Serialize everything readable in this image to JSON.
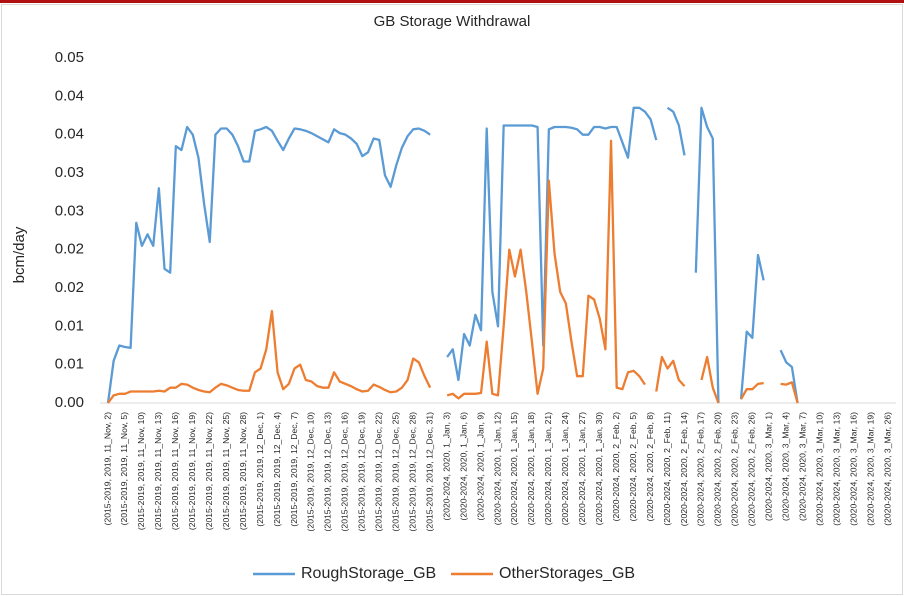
{
  "chart_data": {
    "type": "line",
    "title": "GB Storage Withdrawal",
    "ylabel": "bcm/day",
    "categories": [
      "(2015-2019, 2019, 11_Nov, 2)",
      null,
      null,
      "(2015-2019, 2019, 11_Nov, 5)",
      null,
      null,
      "(2015-2019, 2019, 11_Nov, 10)",
      null,
      null,
      "(2015-2019, 2019, 11_Nov, 13)",
      null,
      null,
      "(2015-2019, 2019, 11_Nov, 16)",
      null,
      null,
      "(2015-2019, 2019, 11_Nov, 19)",
      null,
      null,
      "(2015-2019, 2019, 11_Nov, 22)",
      null,
      null,
      "(2015-2019, 2019, 11_Nov, 25)",
      null,
      null,
      "(2015-2019, 2019, 11_Nov, 28)",
      null,
      null,
      "(2015-2019, 2019, 12_Dec, 1)",
      null,
      null,
      "(2015-2019, 2019, 12_Dec, 4)",
      null,
      null,
      "(2015-2019, 2019, 12_Dec, 7)",
      null,
      null,
      "(2015-2019, 2019, 12_Dec, 10)",
      null,
      null,
      "(2015-2019, 2019, 12_Dec, 13)",
      null,
      null,
      "(2015-2019, 2019, 12_Dec, 16)",
      null,
      null,
      "(2015-2019, 2019, 12_Dec, 19)",
      null,
      null,
      "(2015-2019, 2019, 12_Dec, 22)",
      null,
      null,
      "(2015-2019, 2019, 12_Dec, 25)",
      null,
      null,
      "(2015-2019, 2019, 12_Dec, 28)",
      null,
      null,
      "(2015-2019, 2019, 12_Dec, 31)",
      null,
      null,
      "(2020-2024, 2020, 1_Jan, 3)",
      null,
      null,
      "(2020-2024, 2020, 1_Jan, 6)",
      null,
      null,
      "(2020-2024, 2020, 1_Jan, 9)",
      null,
      null,
      "(2020-2024, 2020, 1_Jan, 12)",
      null,
      null,
      "(2020-2024, 2020, 1_Jan, 15)",
      null,
      null,
      "(2020-2024, 2020, 1_Jan, 18)",
      null,
      null,
      "(2020-2024, 2020, 1_Jan, 21)",
      null,
      null,
      "(2020-2024, 2020, 1_Jan, 24)",
      null,
      null,
      "(2020-2024, 2020, 1_Jan, 27)",
      null,
      null,
      "(2020-2024, 2020, 1_Jan, 30)",
      null,
      null,
      "(2020-2024, 2020, 2_Feb, 2)",
      null,
      null,
      "(2020-2024, 2020, 2_Feb, 5)",
      null,
      null,
      "(2020-2024, 2020, 2_Feb, 8)",
      null,
      null,
      "(2020-2024, 2020, 2_Feb, 11)",
      null,
      null,
      "(2020-2024, 2020, 2_Feb, 14)",
      null,
      null,
      "(2020-2024, 2020, 2_Feb, 17)",
      null,
      null,
      "(2020-2024, 2020, 2_Feb, 20)",
      null,
      null,
      "(2020-2024, 2020, 2_Feb, 23)",
      null,
      null,
      "(2020-2024, 2020, 2_Feb, 26)",
      null,
      null,
      "(2020-2024, 2020, 3_Mar, 1)",
      null,
      null,
      "(2020-2024, 2020, 3_Mar, 4)",
      null,
      null,
      "(2020-2024, 2020, 3_Mar, 7)",
      null,
      null,
      "(2020-2024, 2020, 3_Mar, 10)",
      null,
      null,
      "(2020-2024, 2020, 3_Mar, 13)",
      null,
      null,
      "(2020-2024, 2020, 3_Mar, 16)",
      null,
      null,
      "(2020-2024, 2020, 3_Mar, 19)",
      null,
      null,
      "(2020-2024, 2020, 3_Mar, 26)"
    ],
    "series": [
      {
        "name": "RoughStorage_GB",
        "color": "#5b9bd5",
        "values": [
          0,
          0.0055,
          0.0075,
          0.0073,
          0.0072,
          0.0235,
          0.0205,
          0.022,
          0.0205,
          0.028,
          0.0175,
          0.017,
          0.0335,
          0.033,
          0.036,
          0.035,
          0.032,
          0.026,
          0.021,
          0.035,
          0.0358,
          0.0358,
          0.035,
          0.0335,
          0.0315,
          0.0315,
          0.0355,
          0.0357,
          0.036,
          0.0355,
          0.0342,
          0.033,
          0.0345,
          0.0358,
          0.0357,
          0.0355,
          0.0352,
          0.0348,
          0.0344,
          0.034,
          0.0357,
          0.0352,
          0.035,
          0.0345,
          0.0338,
          0.0322,
          0.0327,
          0.0345,
          0.0343,
          0.0297,
          0.0282,
          0.031,
          0.0333,
          0.0348,
          0.0357,
          0.0358,
          0.0355,
          0.035,
          null,
          null,
          0.006,
          0.007,
          0.003,
          0.009,
          0.0075,
          0.0115,
          0.0095,
          0.0358,
          0.0145,
          0.01,
          0.0362,
          0.0362,
          0.0362,
          0.0362,
          0.0362,
          0.0362,
          0.036,
          0.0075,
          0.0357,
          0.036,
          0.036,
          0.036,
          0.0359,
          0.0357,
          0.035,
          0.035,
          0.036,
          0.036,
          0.0358,
          0.036,
          0.036,
          0.034,
          0.032,
          0.0385,
          0.0385,
          0.038,
          0.037,
          0.0343,
          null,
          0.0385,
          0.038,
          0.0362,
          0.0323,
          null,
          0.017,
          0.0385,
          0.036,
          0.0345,
          0,
          null,
          null,
          null,
          0.0005,
          0.0093,
          0.0085,
          0.0193,
          0.016,
          null,
          null,
          0.0069,
          0.0053,
          0.0047,
          0,
          null,
          null,
          null,
          null,
          null,
          null,
          null,
          null,
          null,
          null,
          null,
          null,
          null,
          null,
          null,
          null
        ]
      },
      {
        "name": "OtherStorages_GB",
        "color": "#ed7d31",
        "values": [
          0,
          0.001,
          0.0012,
          0.0012,
          0.0015,
          0.0015,
          0.0015,
          0.0015,
          0.0015,
          0.0016,
          0.0015,
          0.002,
          0.002,
          0.0025,
          0.0024,
          0.002,
          0.0017,
          0.0015,
          0.0014,
          0.002,
          0.0025,
          0.0023,
          0.002,
          0.0017,
          0.0016,
          0.0016,
          0.004,
          0.0045,
          0.007,
          0.012,
          0.004,
          0.0018,
          0.0025,
          0.0045,
          0.005,
          0.003,
          0.0028,
          0.0022,
          0.002,
          0.002,
          0.004,
          0.0028,
          0.0025,
          0.0022,
          0.0018,
          0.0015,
          0.0016,
          0.0024,
          0.0021,
          0.0017,
          0.0014,
          0.0015,
          0.002,
          0.003,
          0.0058,
          0.0053,
          0.0035,
          0.002,
          null,
          null,
          0.001,
          0.0012,
          0.0006,
          0.0012,
          0.0012,
          0.0012,
          0.0013,
          0.008,
          0.0012,
          0.001,
          0.01,
          0.02,
          0.0165,
          0.02,
          0.0145,
          0.008,
          0.0012,
          0.0045,
          0.029,
          0.0195,
          0.0145,
          0.013,
          0.008,
          0.0035,
          0.0035,
          0.014,
          0.0135,
          0.011,
          0.007,
          0.0342,
          0.002,
          0.0018,
          0.004,
          0.0042,
          0.0035,
          0.0024,
          null,
          0.0015,
          0.006,
          0.0045,
          0.0055,
          0.003,
          0.0022,
          null,
          null,
          0.003,
          0.006,
          0.002,
          0,
          null,
          null,
          null,
          0.0005,
          0.0018,
          0.0018,
          0.0025,
          0.0026,
          null,
          null,
          0.0025,
          0.0024,
          0.0027,
          0,
          null,
          null,
          null,
          null,
          null,
          null,
          null,
          null,
          null,
          null,
          null,
          null,
          null,
          null,
          null,
          null
        ]
      }
    ],
    "ylim": [
      0,
      0.045
    ],
    "yticks": [
      {
        "value": 0,
        "label": "0.00"
      },
      {
        "value": 0.005,
        "label": "0.01"
      },
      {
        "value": 0.01,
        "label": "0.01"
      },
      {
        "value": 0.015,
        "label": "0.02"
      },
      {
        "value": 0.02,
        "label": "0.02"
      },
      {
        "value": 0.025,
        "label": "0.03"
      },
      {
        "value": 0.03,
        "label": "0.03"
      },
      {
        "value": 0.035,
        "label": "0.04"
      },
      {
        "value": 0.04,
        "label": "0.04"
      },
      {
        "value": 0.045,
        "label": "0.05"
      }
    ],
    "grid": false,
    "legend": "bottom"
  }
}
